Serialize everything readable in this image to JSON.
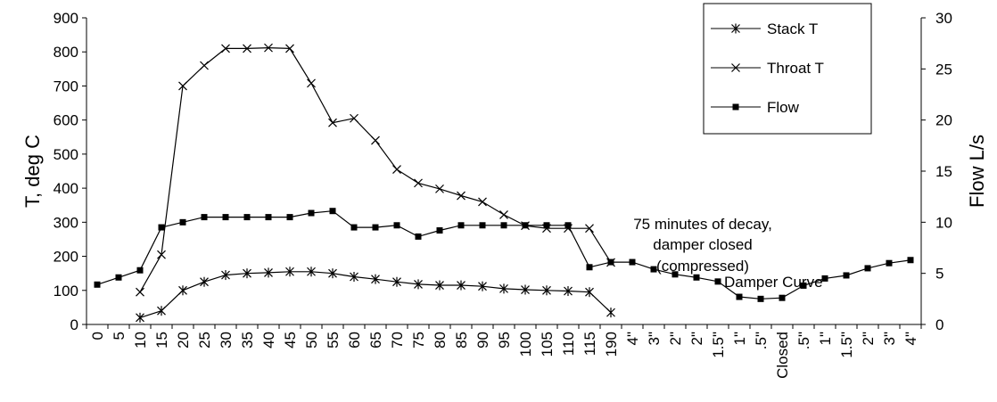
{
  "chart_data": {
    "type": "line",
    "ylabel": "T, deg C",
    "y2label": "Flow L/s",
    "ylim": [
      0,
      900
    ],
    "y2lim": [
      0,
      30
    ],
    "yticks": [
      0,
      100,
      200,
      300,
      400,
      500,
      600,
      700,
      800,
      900
    ],
    "y2ticks": [
      0,
      5,
      10,
      15,
      20,
      25,
      30
    ],
    "categories": [
      "0",
      "5",
      "10",
      "15",
      "20",
      "25",
      "30",
      "35",
      "40",
      "45",
      "50",
      "55",
      "60",
      "65",
      "70",
      "75",
      "80",
      "85",
      "90",
      "95",
      "100",
      "105",
      "110",
      "115",
      "190",
      "4\"",
      "3\"",
      "2\"",
      "2\"",
      "1.5\"",
      "1\"",
      ".5\"",
      "Closed",
      ".5\"",
      "1\"",
      "1.5\"",
      "2\"",
      "3\"",
      "4\""
    ],
    "series": [
      {
        "name": "Stack T",
        "axis": "left",
        "marker": "asterisk",
        "values": [
          null,
          null,
          20,
          40,
          100,
          125,
          145,
          150,
          152,
          155,
          155,
          150,
          140,
          133,
          125,
          118,
          115,
          115,
          112,
          105,
          102,
          100,
          98,
          95,
          35,
          null,
          null,
          null,
          null,
          null,
          null,
          null,
          null,
          null,
          null,
          null,
          null,
          null,
          null
        ]
      },
      {
        "name": "Throat T",
        "axis": "left",
        "marker": "x",
        "values": [
          null,
          null,
          95,
          205,
          700,
          760,
          810,
          810,
          812,
          810,
          708,
          592,
          605,
          540,
          455,
          415,
          398,
          378,
          360,
          322,
          290,
          282,
          282,
          282,
          182,
          null,
          null,
          null,
          null,
          null,
          null,
          null,
          null,
          null,
          null,
          null,
          null,
          null,
          null
        ]
      },
      {
        "name": "Flow",
        "axis": "right",
        "marker": "square",
        "values": [
          3.9,
          4.6,
          5.3,
          9.5,
          10.0,
          10.5,
          10.5,
          10.5,
          10.5,
          10.5,
          10.9,
          11.1,
          9.5,
          9.5,
          9.7,
          8.6,
          9.2,
          9.7,
          9.7,
          9.7,
          9.7,
          9.7,
          9.7,
          5.6,
          6.1,
          6.1,
          5.4,
          4.9,
          4.6,
          4.2,
          2.7,
          2.5,
          2.6,
          3.8,
          4.5,
          4.8,
          5.5,
          6.0,
          6.3
        ]
      }
    ],
    "annotations": [
      {
        "lines": [
          "75 minutes  of decay,",
          "damper closed",
          "(compressed)"
        ]
      },
      {
        "lines": [
          "Damper Curve"
        ]
      }
    ],
    "legend": {
      "placement": "top-right"
    },
    "grid": false,
    "line_color": "#000000"
  }
}
